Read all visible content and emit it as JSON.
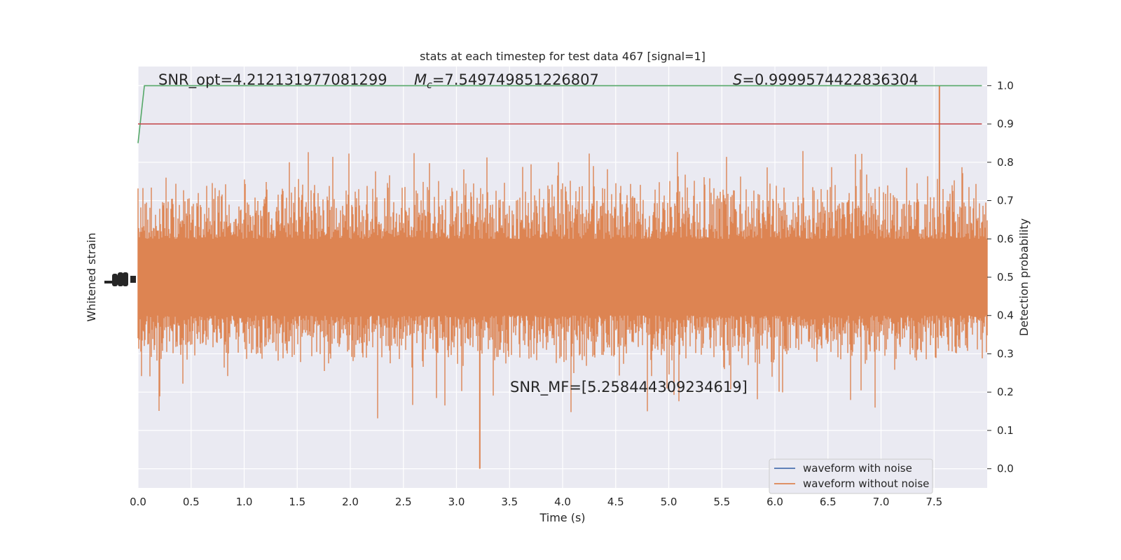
{
  "chart_data": {
    "type": "line",
    "title": "stats at each timestep for test data 467 [signal=1]",
    "xlabel": "Time (s)",
    "ylabel_left": "Whitened strain",
    "ylabel_right": "Detection probability",
    "xlim": [
      0.0,
      8.0
    ],
    "ylim_right": [
      -0.05,
      1.05
    ],
    "x_ticks": [
      "0.0",
      "0.5",
      "1.0",
      "1.5",
      "2.0",
      "2.5",
      "3.0",
      "3.5",
      "4.0",
      "4.5",
      "5.0",
      "5.5",
      "6.0",
      "6.5",
      "7.0",
      "7.5"
    ],
    "y_ticks_right": [
      "0.0",
      "0.1",
      "0.2",
      "0.3",
      "0.4",
      "0.5",
      "0.6",
      "0.7",
      "0.8",
      "0.9",
      "1.0"
    ],
    "grid": true,
    "legend_position": "bottom-right",
    "annotations": {
      "snr_opt": "SNR_opt=4.212131977081299",
      "mc_symbol": "M",
      "mc_sub": "c",
      "mc_value": "=7.549749851226807",
      "s_symbol": "S",
      "s_value": "=0.9999574422836304",
      "snr_mf": "SNR_MF=[5.258444309234619]"
    },
    "series": [
      {
        "name": "waveform with noise",
        "color": "#4c72b0",
        "role": "whitened strain (left axis)"
      },
      {
        "name": "waveform without noise",
        "color": "#dd8452",
        "role": "whitened strain (left axis)"
      },
      {
        "color": "#55a868",
        "x": [
          0.0,
          0.06,
          7.95
        ],
        "y": [
          0.85,
          1.0,
          1.0
        ]
      },
      {
        "color": "#c44e52",
        "x": [
          0.0,
          7.95
        ],
        "y": [
          0.9,
          0.9
        ]
      }
    ],
    "noise_envelope": {
      "center": 0.5,
      "core_half_width": 0.1,
      "typical_peak_range": [
        0.25,
        0.78
      ],
      "max_peak": 1.0,
      "max_peak_x": 7.55,
      "min_trough": 0.0,
      "min_trough_x": 3.22
    }
  }
}
